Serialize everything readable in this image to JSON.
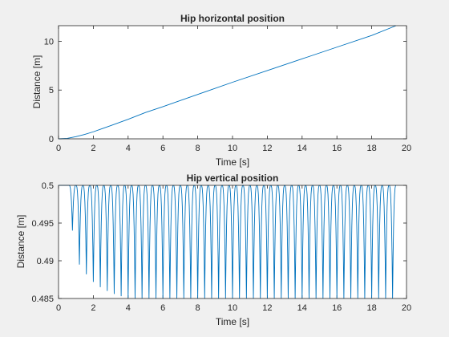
{
  "chart_data": [
    {
      "type": "line",
      "title": "Hip horizontal position",
      "xlabel": "Time [s]",
      "ylabel": "Distance [m]",
      "xlim": [
        0,
        20
      ],
      "ylim": [
        0,
        11.6
      ],
      "xticks": [
        0,
        2,
        4,
        6,
        8,
        10,
        12,
        14,
        16,
        18,
        20
      ],
      "yticks": [
        0,
        5,
        10
      ],
      "grid": false,
      "line_color": "#0072bd",
      "series": [
        {
          "x": [
            0,
            0.5,
            1,
            1.5,
            2,
            3,
            4,
            5,
            6,
            8,
            10,
            12,
            14,
            16,
            18,
            19.4
          ],
          "y": [
            0,
            0.05,
            0.22,
            0.45,
            0.72,
            1.35,
            2.0,
            2.7,
            3.3,
            4.55,
            5.8,
            7.0,
            8.2,
            9.4,
            10.6,
            11.6
          ]
        }
      ]
    },
    {
      "type": "line",
      "title": "Hip vertical position",
      "xlabel": "Time [s]",
      "ylabel": "Distance [m]",
      "xlim": [
        0,
        20
      ],
      "ylim": [
        0.485,
        0.5
      ],
      "xticks": [
        0,
        2,
        4,
        6,
        8,
        10,
        12,
        14,
        16,
        18,
        20
      ],
      "yticks": [
        0.485,
        0.49,
        0.495,
        0.5
      ],
      "grid": false,
      "line_color": "#0072bd",
      "series": [
        {
          "x_start": 0,
          "x_end": 19.5,
          "first_dip_t": 0.8,
          "step_period": 0.4,
          "max": 0.5,
          "dip_minima": [
            0.494,
            0.4895,
            0.4882,
            0.4872,
            0.4865,
            0.486,
            0.4856,
            0.4853,
            0.4851,
            0.485
          ]
        }
      ]
    }
  ]
}
